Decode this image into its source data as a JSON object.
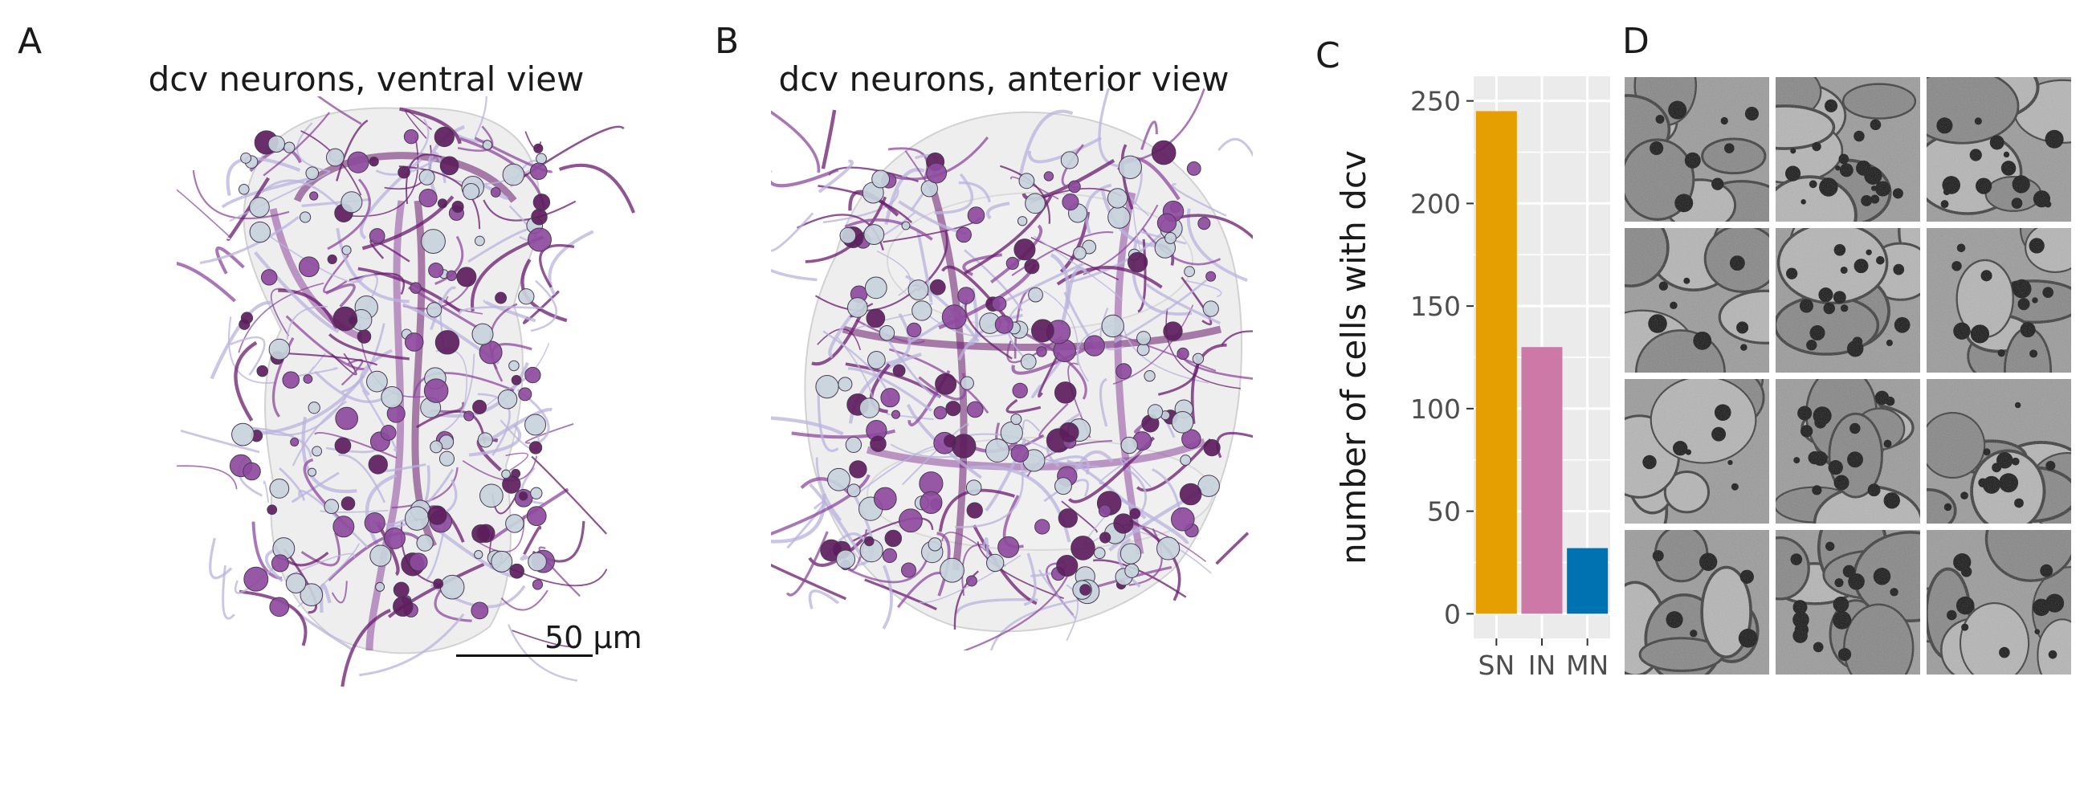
{
  "panels": {
    "a": {
      "letter": "A",
      "title": "dcv neurons, ventral view",
      "scale_label": "50 µm"
    },
    "b": {
      "letter": "B",
      "title": "dcv neurons, anterior view"
    },
    "c": {
      "letter": "C"
    },
    "d": {
      "letter": "D",
      "grid": {
        "rows": 4,
        "cols": 3
      }
    }
  },
  "colors": {
    "neurite_dark": "#6a1b6e",
    "neurite_mid": "#8e4a9e",
    "neurite_light": "#b9b3de",
    "soma_light": "#c7d3dc",
    "soma_dark": "#5d1d5d",
    "body_outline": "#e6e6e6",
    "panel_bg": "#ebebeb"
  },
  "chart_data": {
    "type": "bar",
    "categories": [
      "SN",
      "IN",
      "MN"
    ],
    "values": [
      245,
      130,
      32
    ],
    "colors": [
      "#E69F00",
      "#CC79A7",
      "#0072B2"
    ],
    "ylabel": "number of cells with dcv",
    "yticks": [
      0,
      50,
      100,
      150,
      200,
      250
    ],
    "ylim": [
      -12,
      262
    ],
    "grid": true
  }
}
